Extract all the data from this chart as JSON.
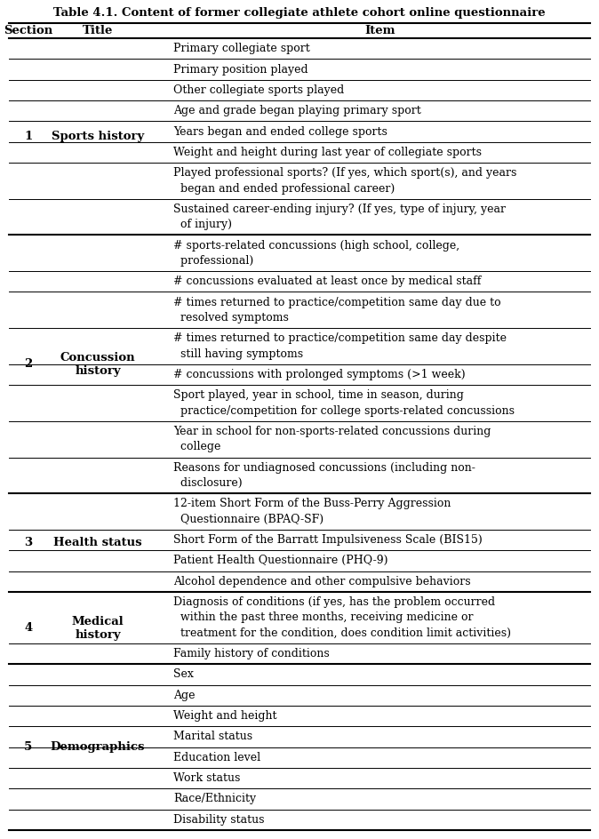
{
  "title": "Table 4.1. Content of former collegiate athlete cohort online questionnaire",
  "col_headers": [
    "Section",
    "Title",
    "Item"
  ],
  "rows": [
    {
      "section": "1",
      "title": "Sports history",
      "items": [
        "Primary collegiate sport",
        "Primary position played",
        "Other collegiate sports played",
        "Age and grade began playing primary sport",
        "Years began and ended college sports",
        "Weight and height during last year of collegiate sports",
        "Played professional sports? (If yes, which sport(s), and years\n  began and ended professional career)",
        "Sustained career-ending injury? (If yes, type of injury, year\n  of injury)"
      ]
    },
    {
      "section": "2",
      "title": "Concussion\nhistory",
      "items": [
        "# sports-related concussions (high school, college,\n  professional)",
        "# concussions evaluated at least once by medical staff",
        "# times returned to practice/competition same day due to\n  resolved symptoms",
        "# times returned to practice/competition same day despite\n  still having symptoms",
        "# concussions with prolonged symptoms (>1 week)",
        "Sport played, year in school, time in season, during\n  practice/competition for college sports-related concussions",
        "Year in school for non-sports-related concussions during\n  college",
        "Reasons for undiagnosed concussions (including non-\n  disclosure)"
      ]
    },
    {
      "section": "3",
      "title": "Health status",
      "items": [
        "12-item Short Form of the Buss-Perry Aggression\n  Questionnaire (BPAQ-SF)",
        "Short Form of the Barratt Impulsiveness Scale (BIS15)",
        "Patient Health Questionnaire (PHQ-9)",
        "Alcohol dependence and other compulsive behaviors"
      ]
    },
    {
      "section": "4",
      "title": "Medical\nhistory",
      "items": [
        "Diagnosis of conditions (if yes, has the problem occurred\n  within the past three months, receiving medicine or\n  treatment for the condition, does condition limit activities)",
        "Family history of conditions"
      ]
    },
    {
      "section": "5",
      "title": "Demographics",
      "items": [
        "Sex",
        "Age",
        "Weight and height",
        "Marital status",
        "Education level",
        "Work status",
        "Race/Ethnicity",
        "Disability status"
      ]
    }
  ],
  "font_size": 9.0,
  "title_font_size": 9.5,
  "header_font_size": 9.5,
  "bg_color": "#ffffff",
  "line_color": "#000000",
  "text_color": "#000000",
  "thick_lw": 1.5,
  "thin_lw": 0.7
}
